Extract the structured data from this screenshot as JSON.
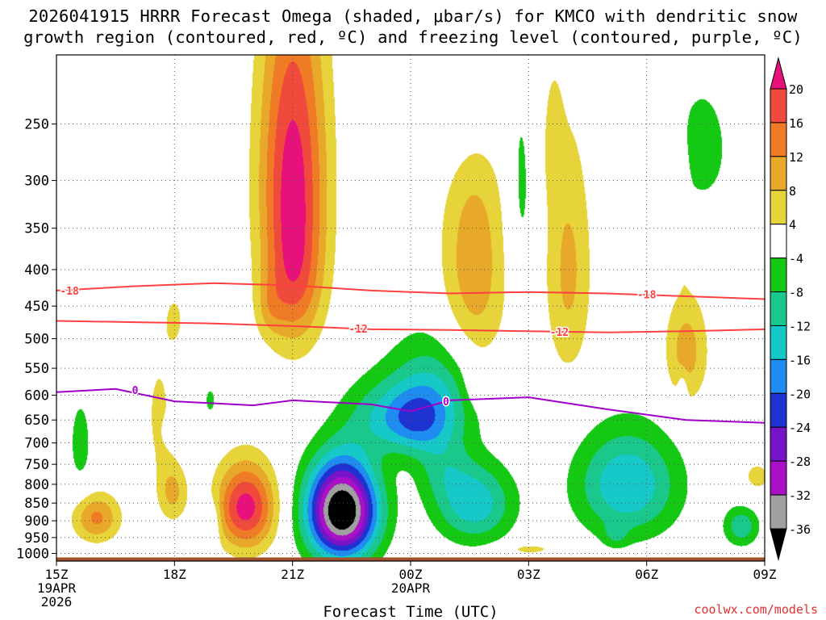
{
  "chart_data": {
    "type": "contour",
    "title_line1": "2026041915 HRRR Forecast Omega (shaded, μbar/s) for KMCO with dendritic snow",
    "title_line2": "growth region (contoured, red, ºC) and freezing level (contoured, purple, ºC)",
    "xlabel": "Forecast Time (UTC)",
    "credit": "coolwx.com/models",
    "x_ticks": [
      {
        "hour": 0,
        "lines": [
          "15Z",
          "19APR",
          "2026"
        ]
      },
      {
        "hour": 3,
        "lines": [
          "18Z"
        ]
      },
      {
        "hour": 6,
        "lines": [
          "21Z"
        ]
      },
      {
        "hour": 9,
        "lines": [
          "00Z",
          "20APR"
        ]
      },
      {
        "hour": 12,
        "lines": [
          "03Z"
        ]
      },
      {
        "hour": 15,
        "lines": [
          "06Z"
        ]
      },
      {
        "hour": 18,
        "lines": [
          "09Z"
        ]
      }
    ],
    "xlim_hours": [
      0,
      18
    ],
    "y_ticks": [
      250,
      300,
      350,
      400,
      450,
      500,
      550,
      600,
      650,
      700,
      750,
      800,
      850,
      900,
      950,
      1000
    ],
    "ylim_hpa": [
      200,
      1025
    ],
    "colorbar": {
      "labels": [
        "20",
        "16",
        "12",
        "8",
        "4",
        "-4",
        "-8",
        "-12",
        "-16",
        "-20",
        "-24",
        "-28",
        "-32",
        "-36"
      ],
      "colors": [
        "#e8107a",
        "#f04a3c",
        "#f07b26",
        "#e8a82a",
        "#e6d43a",
        "#ffffff",
        "#14c814",
        "#19c88a",
        "#16c8c8",
        "#1e8cf0",
        "#1e32d2",
        "#7814c8",
        "#aa10c8",
        "#a0a0a0",
        "#000000"
      ]
    },
    "levels": {
      "pos": [
        4,
        8,
        12,
        16,
        20
      ],
      "neg": [
        -4,
        -8,
        -12,
        -16,
        -20,
        -24,
        -28,
        -32,
        -36
      ]
    },
    "series": [
      {
        "name": "isotherm -18",
        "label": "-18",
        "color": "#ff4040",
        "points": [
          [
            0,
            428
          ],
          [
            2,
            422
          ],
          [
            4,
            418
          ],
          [
            6,
            421
          ],
          [
            8,
            428
          ],
          [
            10,
            432
          ],
          [
            12,
            430
          ],
          [
            14,
            432
          ],
          [
            16,
            436
          ],
          [
            18,
            440
          ]
        ],
        "label_at": [
          [
            0.33,
            428
          ],
          [
            15.0,
            433
          ]
        ]
      },
      {
        "name": "isotherm -12",
        "label": "-12",
        "color": "#ff4040",
        "points": [
          [
            0,
            472
          ],
          [
            2,
            474
          ],
          [
            4,
            476
          ],
          [
            6,
            480
          ],
          [
            8,
            485
          ],
          [
            10,
            486
          ],
          [
            12,
            488
          ],
          [
            14,
            490
          ],
          [
            16,
            488
          ],
          [
            18,
            485
          ]
        ],
        "label_at": [
          [
            7.67,
            484
          ],
          [
            12.78,
            489
          ]
        ]
      },
      {
        "name": "freezing level 0",
        "label": "0",
        "color": "#a000c8",
        "points": [
          [
            0,
            594
          ],
          [
            1.5,
            588
          ],
          [
            3,
            612
          ],
          [
            5,
            620
          ],
          [
            6,
            610
          ],
          [
            8,
            618
          ],
          [
            9,
            632
          ],
          [
            10,
            610
          ],
          [
            12,
            604
          ],
          [
            14,
            628
          ],
          [
            16,
            650
          ],
          [
            18,
            656
          ]
        ],
        "label_at": [
          [
            2.0,
            590
          ],
          [
            9.9,
            612
          ]
        ]
      }
    ],
    "omega_cells": [
      {
        "t": 6.0,
        "p": 300,
        "dt": 0.85,
        "dp": 170,
        "amp": 22
      },
      {
        "t": 6.05,
        "p": 420,
        "dt": 0.65,
        "dp": 80,
        "amp": 6
      },
      {
        "t": 5.4,
        "p": 450,
        "dt": 0.35,
        "dp": 45,
        "amp": 4.5
      },
      {
        "t": 4.8,
        "p": 860,
        "dt": 0.75,
        "dp": 120,
        "amp": 22
      },
      {
        "t": 7.25,
        "p": 870,
        "dt": 0.9,
        "dp": 140,
        "amp": -42
      },
      {
        "t": 10.6,
        "p": 400,
        "dt": 0.85,
        "dp": 190,
        "amp": 11
      },
      {
        "t": 10.8,
        "p": 580,
        "dt": 0.4,
        "dp": 40,
        "amp": 5
      },
      {
        "t": 1.0,
        "p": 890,
        "dt": 0.6,
        "dp": 70,
        "amp": 13
      },
      {
        "t": 2.95,
        "p": 820,
        "dt": 0.38,
        "dp": 80,
        "amp": 9
      },
      {
        "t": 2.6,
        "p": 640,
        "dt": 0.4,
        "dp": 150,
        "amp": 5
      },
      {
        "t": 3.0,
        "p": 470,
        "dt": 0.3,
        "dp": 50,
        "amp": 4.6
      },
      {
        "t": 12.6,
        "p": 260,
        "dt": 0.25,
        "dp": 55,
        "amp": 4.5
      },
      {
        "t": 13.0,
        "p": 400,
        "dt": 0.6,
        "dp": 160,
        "amp": 9
      },
      {
        "t": 15.95,
        "p": 340,
        "dt": 0.12,
        "dp": 60,
        "amp": 4.5
      },
      {
        "t": 16.0,
        "p": 520,
        "dt": 0.55,
        "dp": 95,
        "amp": 10
      },
      {
        "t": 12.0,
        "p": 985,
        "dt": 0.65,
        "dp": 18,
        "amp": 6
      },
      {
        "t": 17.8,
        "p": 780,
        "dt": 0.5,
        "dp": 55,
        "amp": 5
      },
      {
        "t": 9.7,
        "p": 590,
        "dt": 1.3,
        "dp": 110,
        "amp": -12
      },
      {
        "t": 9.1,
        "p": 650,
        "dt": 0.9,
        "dp": 70,
        "amp": -14
      },
      {
        "t": 10.6,
        "p": 850,
        "dt": 1.0,
        "dp": 110,
        "amp": -15
      },
      {
        "t": 9.8,
        "p": 760,
        "dt": 0.7,
        "dp": 80,
        "amp": -6
      },
      {
        "t": 8.0,
        "p": 640,
        "dt": 0.9,
        "dp": 80,
        "amp": -6
      },
      {
        "t": 14.5,
        "p": 800,
        "dt": 1.3,
        "dp": 140,
        "amp": -16
      },
      {
        "t": 14.2,
        "p": 940,
        "dt": 0.3,
        "dp": 35,
        "amp": -5
      },
      {
        "t": 10.4,
        "p": 220,
        "dt": 1.1,
        "dp": 70,
        "amp": -6
      },
      {
        "t": 11.8,
        "p": 320,
        "dt": 0.35,
        "dp": 110,
        "amp": -5.5
      },
      {
        "t": 16.4,
        "p": 270,
        "dt": 0.9,
        "dp": 70,
        "amp": -5.5
      },
      {
        "t": 0.6,
        "p": 700,
        "dt": 0.35,
        "dp": 130,
        "amp": -5.5
      },
      {
        "t": 3.0,
        "p": 670,
        "dt": 0.25,
        "dp": 28,
        "amp": -5.5
      },
      {
        "t": 3.9,
        "p": 610,
        "dt": 0.2,
        "dp": 40,
        "amp": -5
      },
      {
        "t": 4.0,
        "p": 900,
        "dt": 0.18,
        "dp": 70,
        "amp": -5
      },
      {
        "t": 17.4,
        "p": 915,
        "dt": 0.45,
        "dp": 60,
        "amp": -11
      },
      {
        "t": 15.9,
        "p": 590,
        "dt": 0.12,
        "dp": 35,
        "amp": -5
      },
      {
        "t": 13.0,
        "p": 590,
        "dt": 0.1,
        "dp": 25,
        "amp": -5
      },
      {
        "t": 0.6,
        "p": 220,
        "dt": 0.01,
        "dp": 1,
        "amp": 0
      }
    ]
  }
}
